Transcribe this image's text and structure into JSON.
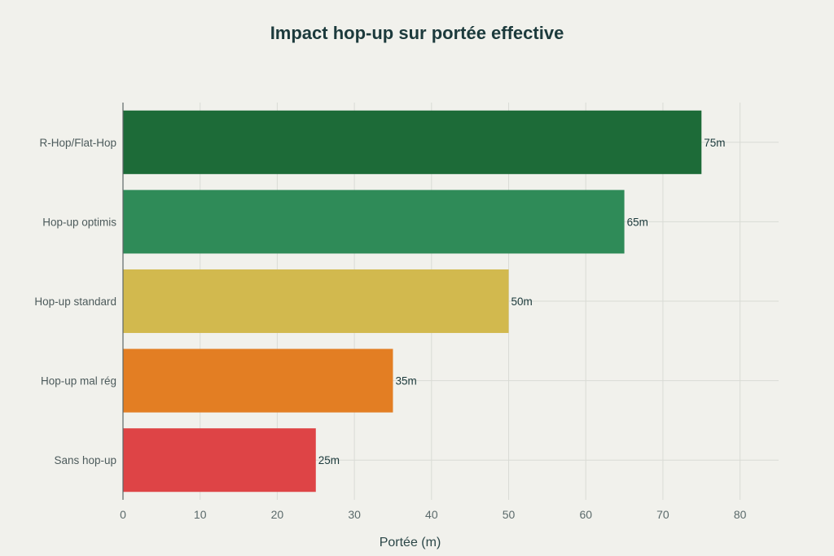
{
  "chart_data": {
    "type": "bar",
    "orientation": "horizontal",
    "title": "Impact hop-up sur portée effective",
    "xlabel": "Portée (m)",
    "ylabel": "",
    "xlim": [
      0,
      85
    ],
    "xticks": [
      0,
      10,
      20,
      30,
      40,
      50,
      60,
      70,
      80
    ],
    "grid": true,
    "categories": [
      "R-Hop/Flat-Hop",
      "Hop-up optimis",
      "Hop-up standard",
      "Hop-up mal rég",
      "Sans hop-up"
    ],
    "values": [
      75,
      65,
      50,
      35,
      25
    ],
    "data_labels": [
      "75m",
      "65m",
      "50m",
      "35m",
      "25m"
    ],
    "colors": [
      "#1d6b38",
      "#2f8b58",
      "#d2b94e",
      "#e37e23",
      "#de4446"
    ]
  }
}
